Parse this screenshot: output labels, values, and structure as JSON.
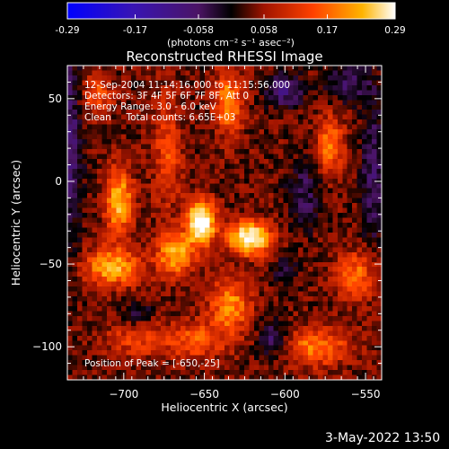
{
  "footer": {
    "datetime": "3-May-2022 13:50"
  },
  "colorbar": {
    "ticks": [
      "-0.29",
      "-0.17",
      "-0.058",
      "0.058",
      "0.17",
      "0.29"
    ],
    "unit": "(photons cm⁻² s⁻¹ asec⁻²)",
    "range": [
      -0.29,
      0.29
    ]
  },
  "chart_data": {
    "type": "heatmap",
    "title": "Reconstructed RHESSI Image",
    "xlabel": "Heliocentric X (arcsec)",
    "ylabel": "Heliocentric Y (arcsec)",
    "xlim": [
      -735,
      -540
    ],
    "ylim": [
      -120,
      70
    ],
    "x_ticks": [
      -700,
      -650,
      -600,
      -550
    ],
    "x_tick_labels": [
      "−700",
      "−650",
      "−600",
      "−550"
    ],
    "y_ticks": [
      50,
      0,
      -50,
      -100
    ],
    "y_tick_labels": [
      "50",
      "0",
      "−50",
      "−100"
    ],
    "annotations": [
      "12-Sep-2004 11:14:16.000 to 11:15:56.000",
      "Detectors: 3F 4F 5F 6F 7F 8F, Att 0",
      "Energy Range: 3.0 - 6.0 keV",
      "Clean     Total counts: 6.65E+03"
    ],
    "peak_label": "Position of Peak = [-650,-25]",
    "peak_position": [
      -650,
      -25
    ],
    "sources": [
      {
        "x": -652,
        "y": -25,
        "value": 0.29,
        "sx": 6,
        "sy": 9
      },
      {
        "x": -622,
        "y": -34,
        "value": 0.26,
        "sx": 9,
        "sy": 7
      },
      {
        "x": -668,
        "y": -44,
        "value": 0.17,
        "sx": 8,
        "sy": 9
      },
      {
        "x": -703,
        "y": -12,
        "value": 0.18,
        "sx": 6,
        "sy": 14
      },
      {
        "x": -707,
        "y": -52,
        "value": 0.17,
        "sx": 12,
        "sy": 8
      },
      {
        "x": -635,
        "y": 48,
        "value": 0.14,
        "sx": 6,
        "sy": 14
      },
      {
        "x": -572,
        "y": 22,
        "value": 0.13,
        "sx": 6,
        "sy": 12
      },
      {
        "x": -556,
        "y": -57,
        "value": 0.12,
        "sx": 9,
        "sy": 10
      },
      {
        "x": -580,
        "y": -100,
        "value": 0.13,
        "sx": 14,
        "sy": 8
      },
      {
        "x": -634,
        "y": -75,
        "value": 0.14,
        "sx": 9,
        "sy": 11
      },
      {
        "x": -673,
        "y": 18,
        "value": 0.09,
        "sx": 6,
        "sy": 24
      },
      {
        "x": -717,
        "y": 52,
        "value": 0.1,
        "sx": 7,
        "sy": 8
      },
      {
        "x": -655,
        "y": -96,
        "value": 0.1,
        "sx": 14,
        "sy": 8
      },
      {
        "x": -693,
        "y": -95,
        "value": 0.08,
        "sx": 13,
        "sy": 8
      },
      {
        "x": -600,
        "y": 55,
        "value": -0.12,
        "sx": 8,
        "sy": 7
      },
      {
        "x": -588,
        "y": -8,
        "value": -0.08,
        "sx": 7,
        "sy": 14
      },
      {
        "x": -735,
        "y": 20,
        "value": -0.12,
        "sx": 6,
        "sy": 40
      },
      {
        "x": -545,
        "y": 5,
        "value": -0.1,
        "sx": 5,
        "sy": 30
      },
      {
        "x": -608,
        "y": -95,
        "value": -0.1,
        "sx": 6,
        "sy": 8
      },
      {
        "x": -692,
        "y": -80,
        "value": -0.06,
        "sx": 8,
        "sy": 6
      },
      {
        "x": -560,
        "y": 60,
        "value": -0.09,
        "sx": 10,
        "sy": 8
      },
      {
        "x": -600,
        "y": -55,
        "value": -0.05,
        "sx": 6,
        "sy": 7
      }
    ],
    "grid": false
  }
}
